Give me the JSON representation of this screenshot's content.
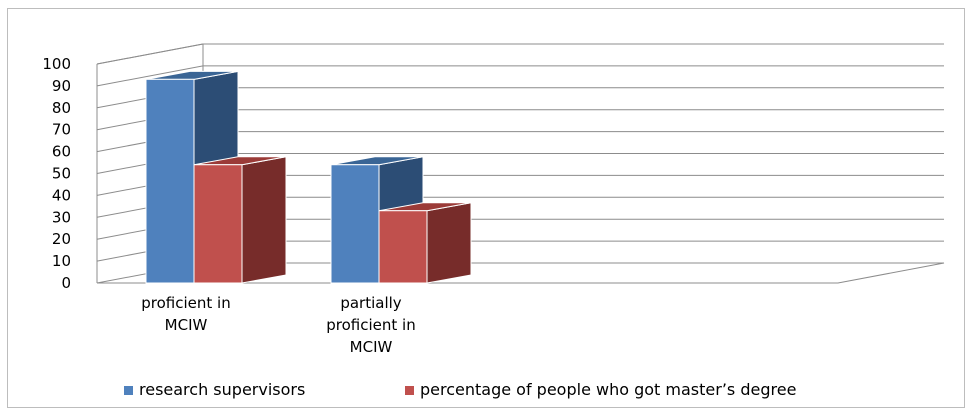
{
  "chart_data": {
    "type": "bar",
    "categories": [
      [
        "proficient in",
        "MCIW"
      ],
      [
        "partially",
        "proficient in",
        "MCIW"
      ]
    ],
    "series": [
      {
        "name": "research supervisors",
        "values": [
          93,
          54
        ]
      },
      {
        "name": "percentage of people who got master’s degree",
        "values": [
          54,
          33
        ]
      }
    ],
    "ylim": [
      0,
      100
    ],
    "yticks": [
      0,
      10,
      20,
      30,
      40,
      50,
      60,
      70,
      80,
      90,
      100
    ],
    "grid": true,
    "legend": "bottom",
    "colors": {
      "research supervisors": {
        "front": "#4f81bd",
        "side": "#2c4d75",
        "top": "#3a6595"
      },
      "percentage": {
        "front": "#c0504d",
        "side": "#772c2a",
        "top": "#9b3b38"
      },
      "grid": "#8c8c8c",
      "wall": "#d9d9d9"
    }
  }
}
